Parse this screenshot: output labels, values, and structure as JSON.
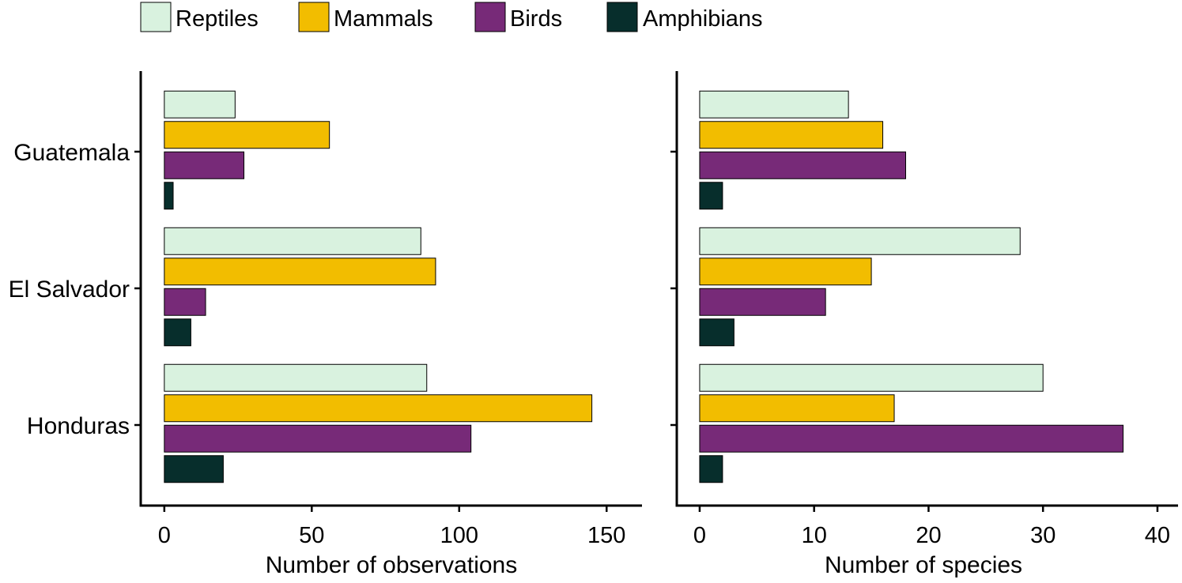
{
  "chart_data": [
    {
      "type": "bar",
      "orientation": "horizontal",
      "categories": [
        "Guatemala",
        "El Salvador",
        "Honduras"
      ],
      "series": [
        {
          "name": "Reptiles",
          "color": "#d9f2df",
          "values": [
            24,
            87,
            89
          ]
        },
        {
          "name": "Mammals",
          "color": "#f2bd00",
          "values": [
            56,
            92,
            145
          ]
        },
        {
          "name": "Birds",
          "color": "#772a78",
          "values": [
            27,
            14,
            104
          ]
        },
        {
          "name": "Amphibians",
          "color": "#072e2c",
          "values": [
            3,
            9,
            20
          ]
        }
      ],
      "xlabel": "Number of observations",
      "ylabel": "",
      "xlim": [
        -8,
        162
      ],
      "xticks": [
        0,
        50,
        100,
        150
      ],
      "grid": false,
      "legend": "top"
    },
    {
      "type": "bar",
      "orientation": "horizontal",
      "categories": [
        "Guatemala",
        "El Salvador",
        "Honduras"
      ],
      "series": [
        {
          "name": "Reptiles",
          "color": "#d9f2df",
          "values": [
            13,
            28,
            30
          ]
        },
        {
          "name": "Mammals",
          "color": "#f2bd00",
          "values": [
            16,
            15,
            17
          ]
        },
        {
          "name": "Birds",
          "color": "#772a78",
          "values": [
            18,
            11,
            37
          ]
        },
        {
          "name": "Amphibians",
          "color": "#072e2c",
          "values": [
            2,
            3,
            2
          ]
        }
      ],
      "xlabel": "Number of species",
      "ylabel": "",
      "xlim": [
        -2,
        41.8
      ],
      "xticks": [
        0,
        10,
        20,
        30,
        40
      ],
      "grid": false,
      "legend": "top"
    }
  ],
  "legend": {
    "items": [
      {
        "label": "Reptiles",
        "color": "#d9f2df"
      },
      {
        "label": "Mammals",
        "color": "#f2bd00"
      },
      {
        "label": "Birds",
        "color": "#772a78"
      },
      {
        "label": "Amphibians",
        "color": "#072e2c"
      }
    ]
  }
}
